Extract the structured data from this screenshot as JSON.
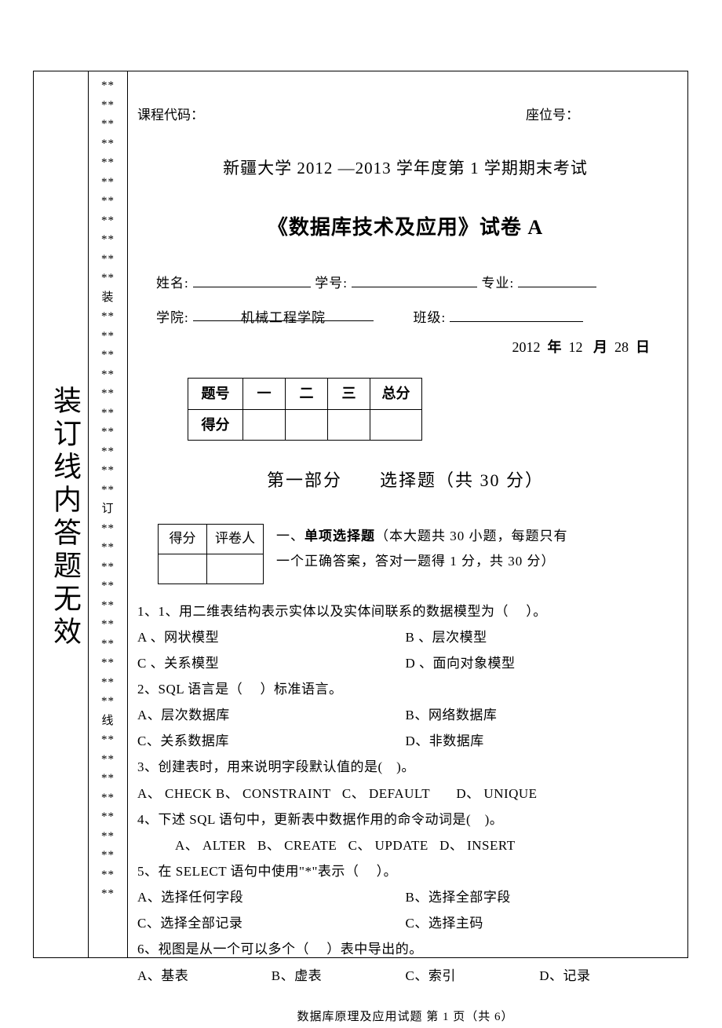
{
  "side_text": "装订线内答题无效",
  "mid_markers": {
    "star": "**",
    "zhuang": "装",
    "ding": "订",
    "xian": "线"
  },
  "header": {
    "course_code_label": "课程代码：",
    "seat_label": "座位号：",
    "title_line1": "新疆大学 2012 —2013 学年度第 1 学期期末考试",
    "title_line2": "《数据库技术及应用》试卷 A"
  },
  "info": {
    "name_label": "姓名:",
    "stuid_label": "学号:",
    "major_label": "专业:",
    "college_label": "学院:",
    "college_value": "机械工程学院",
    "class_label": "班级:"
  },
  "date": {
    "year": "2012",
    "year_unit": "年",
    "month": "12",
    "month_unit": "月",
    "day": "28",
    "day_unit": "日"
  },
  "score_table": {
    "h0": "题号",
    "h1": "一",
    "h2": "二",
    "h3": "三",
    "h4": "总分",
    "r0": "得分"
  },
  "section1_title": "第一部分　　选择题（共 30  分）",
  "sub_table": {
    "c0": "得分",
    "c1": "评卷人"
  },
  "sub_desc": {
    "prefix": "一、",
    "bold": "单项选择题",
    "rest1": "（本大题共  30   小题，每题只有",
    "rest2": "一个正确答案，答对一题得   1 分，共 30  分）"
  },
  "questions": [
    {
      "q": "1、1、用二维表结构表示实体以及实体间联系的数据模型为（　 ）。",
      "layout": "half",
      "opts": [
        "A 、网状模型",
        "B 、层次模型",
        "C 、关系模型",
        "D 、面向对象模型"
      ]
    },
    {
      "q": "2、SQL 语言是（　 ）标准语言。",
      "layout": "half",
      "opts": [
        "A、层次数据库",
        "B、网络数据库",
        "C、关系数据库",
        "D、非数据库"
      ]
    },
    {
      "q": "3、创建表时，用来说明字段默认值的是(　)。",
      "layout": "inline",
      "opts": [
        "A、 CHECK",
        "B、 CONSTRAINT",
        "C、 DEFAULT",
        "D、 UNIQUE"
      ]
    },
    {
      "q": "4、下述 SQL 语句中，更新表中数据作用的命令动词是(　)。",
      "layout": "inline-indent",
      "opts": [
        "A、  ALTER",
        "B、  CREATE",
        "C、 UPDATE",
        "D、 INSERT"
      ]
    },
    {
      "q": "5、在 SELECT 语句中使用\"*\"表示（　 ）。",
      "layout": "half",
      "opts": [
        "A、选择任何字段",
        "B、选择全部字段",
        "C、选择全部记录",
        "C、选择主码"
      ]
    },
    {
      "q": "6、视图是从一个可以多个（　 ）表中导出的。",
      "layout": "quarter",
      "opts": [
        "A、基表",
        "B、虚表",
        "C、索引",
        "D、记录"
      ]
    }
  ],
  "footer": "数据库原理及应用试题   第 1 页（共 6）"
}
